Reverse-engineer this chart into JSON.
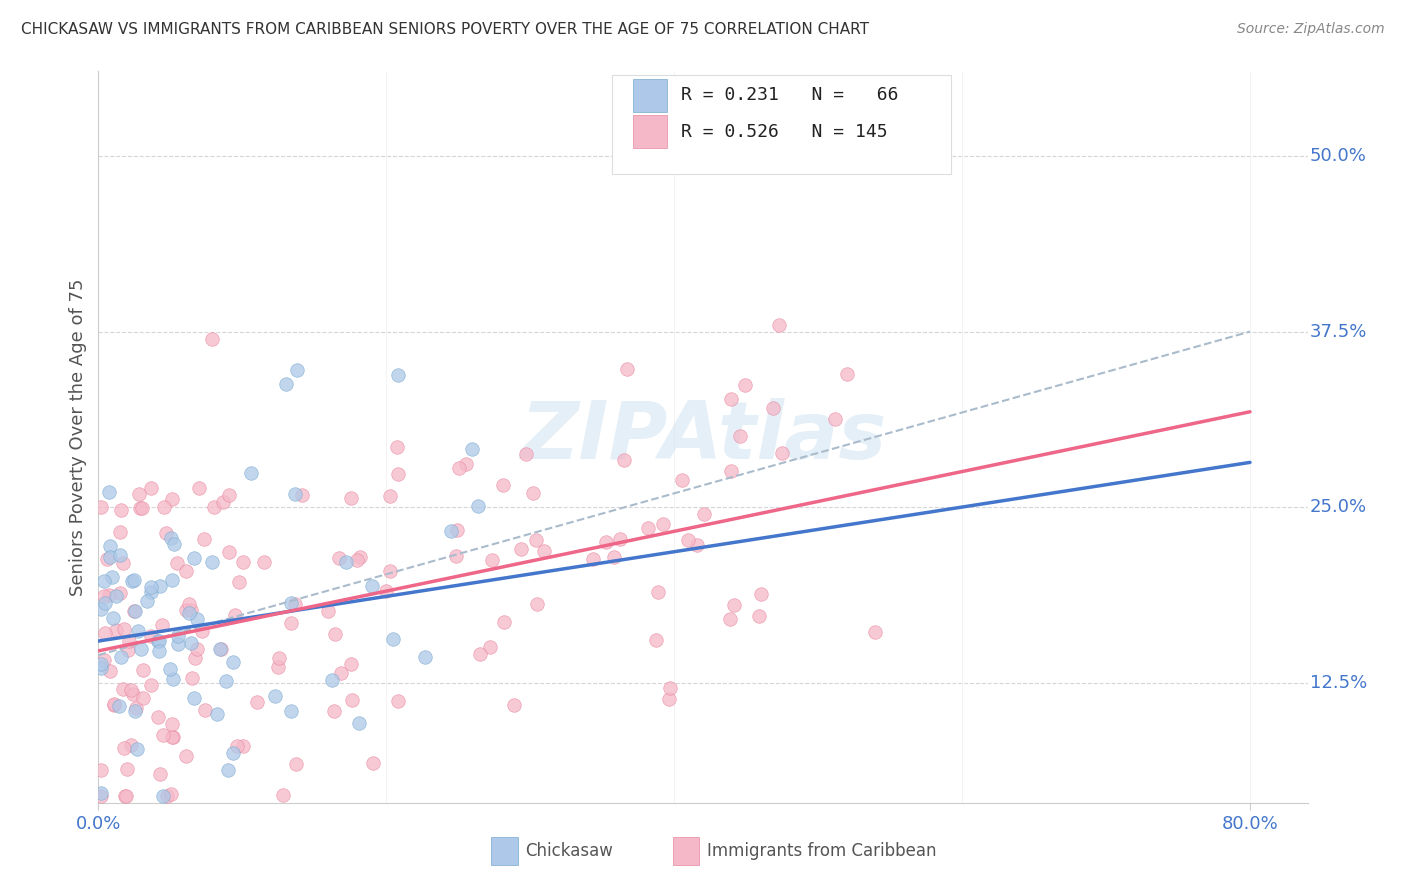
{
  "title": "CHICKASAW VS IMMIGRANTS FROM CARIBBEAN SENIORS POVERTY OVER THE AGE OF 75 CORRELATION CHART",
  "source": "Source: ZipAtlas.com",
  "ylabel_label": "Seniors Poverty Over the Age of 75",
  "ytick_labels": [
    "12.5%",
    "25.0%",
    "37.5%",
    "50.0%"
  ],
  "ytick_values": [
    0.125,
    0.25,
    0.375,
    0.5
  ],
  "xtick_labels": [
    "0.0%",
    "80.0%"
  ],
  "xtick_values": [
    0.0,
    0.8
  ],
  "xlim": [
    0.0,
    0.84
  ],
  "ylim": [
    0.04,
    0.56
  ],
  "legend_text_1": "R = 0.231   N =   66",
  "legend_text_2": "R = 0.526   N = 145",
  "color_chickasaw_fill": "#adc8e8",
  "color_chickasaw_edge": "#7aaad0",
  "color_caribbean_fill": "#f5b8c8",
  "color_caribbean_edge": "#e888a0",
  "color_line_chickasaw": "#4477cc",
  "color_line_caribbean": "#ee6688",
  "color_dashed": "#aabbcc",
  "watermark": "ZIPAtlas",
  "background_color": "#ffffff",
  "grid_color": "#cccccc",
  "title_color": "#333333",
  "axis_tick_color": "#4477cc",
  "source_color": "#888888",
  "ylabel_color": "#555555",
  "legend_box_color": "#dddddd",
  "bottom_label_color": "#555555",
  "line_chickasaw_start_y": 0.155,
  "line_chickasaw_end_y": 0.282,
  "line_caribbean_start_y": 0.148,
  "line_caribbean_end_y": 0.318,
  "line_dashed_start_y": 0.145,
  "line_dashed_end_y": 0.375
}
